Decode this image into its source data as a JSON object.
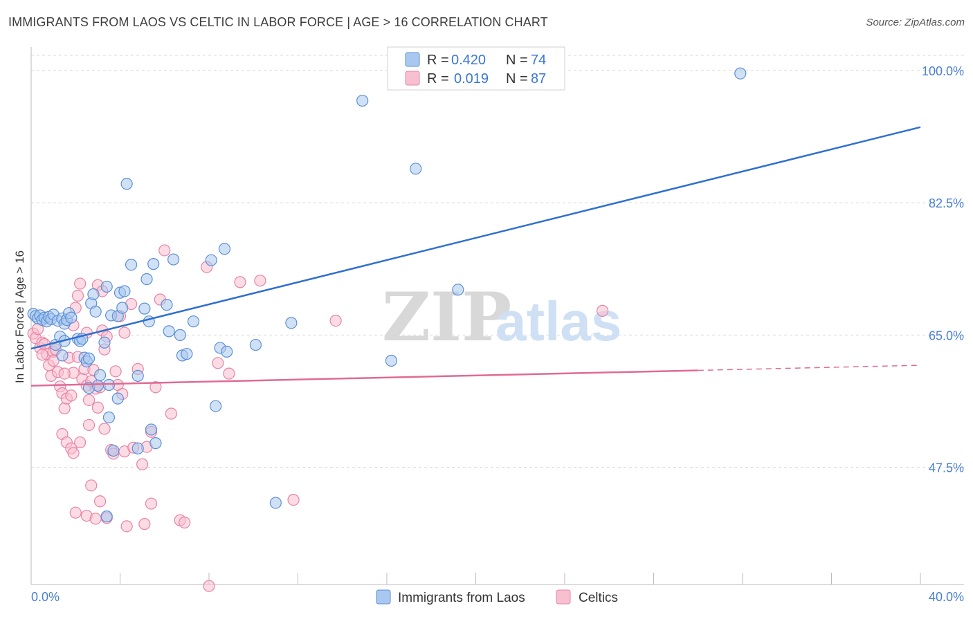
{
  "header": {
    "title": "IMMIGRANTS FROM LAOS VS CELTIC IN LABOR FORCE | AGE > 16 CORRELATION CHART",
    "source": "Source: ZipAtlas.com"
  },
  "watermark": {
    "zip": "ZIP",
    "atlas": "atlas"
  },
  "legend": {
    "rows": [
      {
        "r_label": "R =",
        "r_value": "0.420",
        "n_label": "N =",
        "n_value": "74"
      },
      {
        "r_label": "R =",
        "r_value": "0.019",
        "n_label": "N =",
        "n_value": "87"
      }
    ]
  },
  "colors": {
    "blue_fill": "#a9c8ef",
    "blue_stroke": "#5b8fd6",
    "blue_line": "#2f6fcf",
    "pink_fill": "#f7c0d0",
    "pink_stroke": "#e883a4",
    "pink_line": "#e06a94",
    "grid": "#d8d8d8",
    "tick_text": "#4a7fd0"
  },
  "chart_data": {
    "type": "scatter",
    "title": "IMMIGRANTS FROM LAOS VS CELTIC IN LABOR FORCE | AGE > 16 CORRELATION CHART",
    "xlabel": "",
    "ylabel": "In Labor Force | Age > 16",
    "xlim": [
      0,
      40
    ],
    "ylim": [
      32,
      102
    ],
    "x_tick_labels": [
      "0.0%",
      "40.0%"
    ],
    "y_ticks": [
      47.5,
      65.0,
      82.5,
      100.0
    ],
    "y_tick_labels": [
      "47.5%",
      "65.0%",
      "82.5%",
      "100.0%"
    ],
    "grid": true,
    "legend_position": "top-center",
    "series": [
      {
        "name": "Immigrants from Laos",
        "r": 0.42,
        "n": 74,
        "trend": {
          "x": [
            0,
            40
          ],
          "y": [
            63.2,
            92.5
          ],
          "dashed_from": null
        },
        "points": [
          [
            0.1,
            67.8
          ],
          [
            0.2,
            67.5
          ],
          [
            0.3,
            67.2
          ],
          [
            0.4,
            67.6
          ],
          [
            0.5,
            67.0
          ],
          [
            0.6,
            67.3
          ],
          [
            0.7,
            66.8
          ],
          [
            0.8,
            67.4
          ],
          [
            0.9,
            67.1
          ],
          [
            1.0,
            67.7
          ],
          [
            1.2,
            66.9
          ],
          [
            1.4,
            67.2
          ],
          [
            1.5,
            66.5
          ],
          [
            1.6,
            67.0
          ],
          [
            1.7,
            67.9
          ],
          [
            1.8,
            67.3
          ],
          [
            1.1,
            63.7
          ],
          [
            1.3,
            64.8
          ],
          [
            1.4,
            62.3
          ],
          [
            1.5,
            64.2
          ],
          [
            2.1,
            64.5
          ],
          [
            2.2,
            64.2
          ],
          [
            2.3,
            64.5
          ],
          [
            2.4,
            62.0
          ],
          [
            2.5,
            61.5
          ],
          [
            2.6,
            61.9
          ],
          [
            2.7,
            69.2
          ],
          [
            2.8,
            70.4
          ],
          [
            2.9,
            68.1
          ],
          [
            2.6,
            58.0
          ],
          [
            3.0,
            58.3
          ],
          [
            3.1,
            59.7
          ],
          [
            3.3,
            64.0
          ],
          [
            3.4,
            71.4
          ],
          [
            3.5,
            58.4
          ],
          [
            3.5,
            54.1
          ],
          [
            3.6,
            67.6
          ],
          [
            3.7,
            49.7
          ],
          [
            3.9,
            56.6
          ],
          [
            3.9,
            67.5
          ],
          [
            4.0,
            70.6
          ],
          [
            4.1,
            68.6
          ],
          [
            4.2,
            70.8
          ],
          [
            4.3,
            85.0
          ],
          [
            4.5,
            74.3
          ],
          [
            4.8,
            59.6
          ],
          [
            4.8,
            50.0
          ],
          [
            5.1,
            68.5
          ],
          [
            5.2,
            72.4
          ],
          [
            5.3,
            66.8
          ],
          [
            5.4,
            52.5
          ],
          [
            5.5,
            74.4
          ],
          [
            5.6,
            50.7
          ],
          [
            6.1,
            69.0
          ],
          [
            6.2,
            65.5
          ],
          [
            6.4,
            75.0
          ],
          [
            6.7,
            65.0
          ],
          [
            6.8,
            62.3
          ],
          [
            7.0,
            62.5
          ],
          [
            7.3,
            66.8
          ],
          [
            8.1,
            74.9
          ],
          [
            8.3,
            55.6
          ],
          [
            8.5,
            63.3
          ],
          [
            8.7,
            76.4
          ],
          [
            8.8,
            62.8
          ],
          [
            10.1,
            63.7
          ],
          [
            11.0,
            42.8
          ],
          [
            11.7,
            66.6
          ],
          [
            14.9,
            96.0
          ],
          [
            16.2,
            61.6
          ],
          [
            17.3,
            87.0
          ],
          [
            19.2,
            71.0
          ],
          [
            31.9,
            99.6
          ],
          [
            3.4,
            41.0
          ]
        ]
      },
      {
        "name": "Celtics",
        "r": 0.019,
        "n": 87,
        "trend": {
          "x": [
            0,
            40
          ],
          "y": [
            58.3,
            61.0
          ],
          "dashed_from": 30.0
        },
        "points": [
          [
            0.1,
            65.2
          ],
          [
            0.2,
            64.6
          ],
          [
            0.3,
            65.8
          ],
          [
            0.4,
            63.3
          ],
          [
            0.5,
            64.0
          ],
          [
            0.6,
            63.8
          ],
          [
            0.7,
            62.5
          ],
          [
            0.8,
            61.0
          ],
          [
            0.9,
            59.6
          ],
          [
            1.0,
            62.8
          ],
          [
            1.1,
            63.1
          ],
          [
            1.2,
            60.1
          ],
          [
            1.3,
            58.2
          ],
          [
            1.4,
            57.3
          ],
          [
            1.5,
            55.3
          ],
          [
            1.6,
            56.6
          ],
          [
            1.7,
            62.0
          ],
          [
            1.8,
            57.0
          ],
          [
            1.9,
            66.3
          ],
          [
            2.0,
            68.6
          ],
          [
            2.1,
            70.2
          ],
          [
            2.2,
            71.8
          ],
          [
            1.9,
            60.0
          ],
          [
            2.1,
            62.1
          ],
          [
            2.3,
            59.2
          ],
          [
            2.4,
            60.5
          ],
          [
            2.5,
            58.3
          ],
          [
            2.6,
            56.4
          ],
          [
            2.7,
            58.9
          ],
          [
            2.8,
            60.4
          ],
          [
            2.9,
            57.9
          ],
          [
            3.0,
            55.4
          ],
          [
            3.1,
            58.1
          ],
          [
            3.2,
            65.6
          ],
          [
            3.3,
            63.1
          ],
          [
            3.4,
            64.8
          ],
          [
            3.0,
            71.6
          ],
          [
            3.2,
            70.8
          ],
          [
            2.5,
            65.3
          ],
          [
            3.8,
            60.2
          ],
          [
            3.9,
            58.4
          ],
          [
            4.0,
            67.5
          ],
          [
            4.1,
            57.2
          ],
          [
            4.2,
            65.3
          ],
          [
            4.5,
            69.1
          ],
          [
            4.8,
            60.5
          ],
          [
            5.0,
            47.9
          ],
          [
            5.2,
            50.2
          ],
          [
            5.4,
            52.2
          ],
          [
            5.6,
            58.1
          ],
          [
            5.8,
            69.7
          ],
          [
            6.0,
            76.2
          ],
          [
            6.3,
            54.6
          ],
          [
            6.7,
            40.5
          ],
          [
            7.9,
            74.0
          ],
          [
            8.0,
            31.8
          ],
          [
            8.4,
            61.3
          ],
          [
            8.9,
            59.9
          ],
          [
            9.4,
            72.0
          ],
          [
            10.3,
            72.2
          ],
          [
            11.8,
            43.2
          ],
          [
            13.7,
            66.9
          ],
          [
            25.7,
            68.2
          ],
          [
            1.4,
            51.9
          ],
          [
            1.6,
            50.8
          ],
          [
            1.8,
            50.0
          ],
          [
            1.9,
            49.4
          ],
          [
            2.2,
            50.8
          ],
          [
            2.7,
            45.1
          ],
          [
            2.5,
            41.1
          ],
          [
            2.9,
            40.7
          ],
          [
            3.1,
            43.0
          ],
          [
            3.4,
            40.8
          ],
          [
            4.3,
            39.7
          ],
          [
            5.1,
            40.0
          ],
          [
            5.4,
            42.7
          ],
          [
            6.9,
            40.2
          ],
          [
            0.5,
            62.4
          ],
          [
            1.0,
            61.6
          ],
          [
            1.5,
            59.9
          ],
          [
            2.6,
            53.1
          ],
          [
            3.3,
            52.6
          ],
          [
            3.6,
            49.8
          ],
          [
            4.2,
            49.6
          ],
          [
            4.6,
            50.1
          ],
          [
            2.0,
            41.5
          ],
          [
            3.7,
            49.3
          ]
        ]
      }
    ]
  }
}
